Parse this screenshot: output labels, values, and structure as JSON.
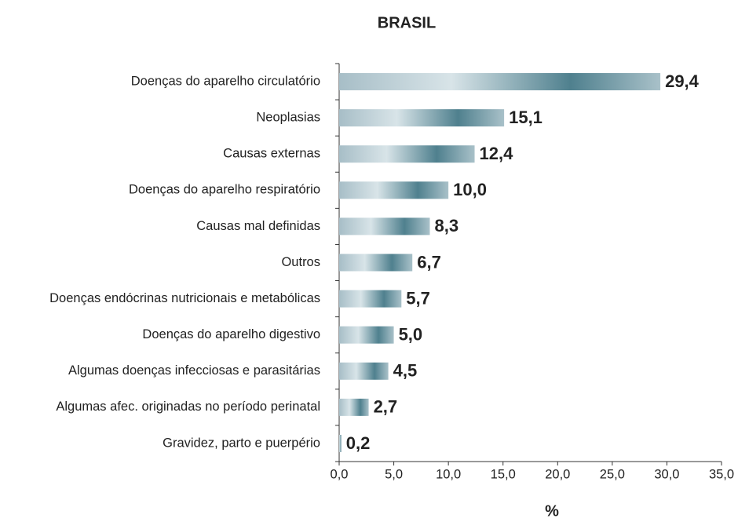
{
  "chart_data": {
    "type": "bar",
    "orientation": "horizontal",
    "title": "BRASIL",
    "xlabel": "%",
    "categories": [
      "Doenças do aparelho circulatório",
      "Neoplasias",
      "Causas externas",
      "Doenças do aparelho respiratório",
      "Causas mal definidas",
      "Outros",
      "Doenças endócrinas nutricionais e metabólicas",
      "Doenças do aparelho digestivo",
      "Algumas doenças infecciosas e parasitárias",
      "Algumas afec. originadas no período perinatal",
      "Gravidez, parto e puerpério"
    ],
    "values": [
      29.4,
      15.1,
      12.4,
      10.0,
      8.3,
      6.7,
      5.7,
      5.0,
      4.5,
      2.7,
      0.2
    ],
    "value_labels": [
      "29,4",
      "15,1",
      "12,4",
      "10,0",
      "8,3",
      "6,7",
      "5,7",
      "5,0",
      "4,5",
      "2,7",
      "0,2"
    ],
    "color": "#4f808e",
    "xlim": [
      0,
      35
    ],
    "xticks": [
      {
        "value": 0,
        "label": "0,0"
      },
      {
        "value": 5,
        "label": "5,0"
      },
      {
        "value": 10,
        "label": "10,0"
      },
      {
        "value": 15,
        "label": "15,0"
      },
      {
        "value": 20,
        "label": "20,0"
      },
      {
        "value": 25,
        "label": "25,0"
      },
      {
        "value": 30,
        "label": "30,0"
      },
      {
        "value": 35,
        "label": "35,0"
      }
    ],
    "grid": false
  }
}
